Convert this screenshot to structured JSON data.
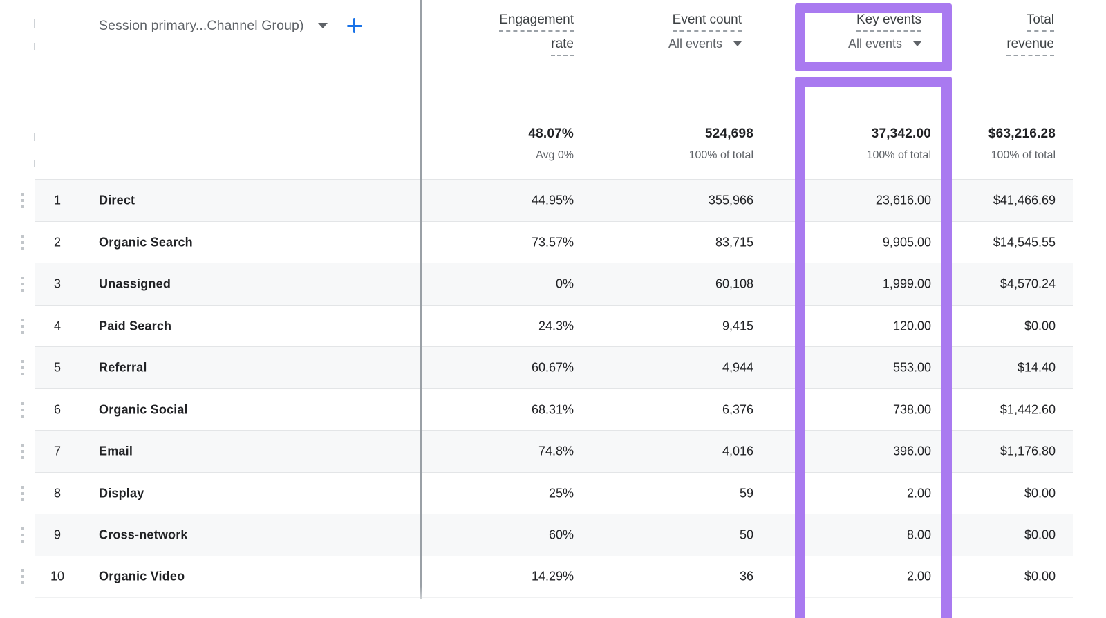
{
  "table": {
    "dimension_header": {
      "label": "Session primary...Channel Group)"
    },
    "columns": [
      {
        "id": "engagement_rate",
        "title_lines": [
          "Engagement",
          "rate"
        ],
        "subtitle": "",
        "summary_value": "48.07%",
        "summary_sub": "Avg 0%",
        "highlighted": false
      },
      {
        "id": "event_count",
        "title_lines": [
          "Event count"
        ],
        "subtitle": "All events",
        "summary_value": "524,698",
        "summary_sub": "100% of total",
        "highlighted": false
      },
      {
        "id": "key_events",
        "title_lines": [
          "Key events"
        ],
        "subtitle": "All events",
        "summary_value": "37,342.00",
        "summary_sub": "100% of total",
        "highlighted": true
      },
      {
        "id": "total_revenue",
        "title_lines": [
          "Total",
          "revenue"
        ],
        "subtitle": "",
        "summary_value": "$63,216.28",
        "summary_sub": "100% of total",
        "highlighted": false
      }
    ],
    "rows": [
      {
        "index": "1",
        "channel": "Direct",
        "engagement_rate": "44.95%",
        "event_count": "355,966",
        "key_events": "23,616.00",
        "total_revenue": "$41,466.69"
      },
      {
        "index": "2",
        "channel": "Organic Search",
        "engagement_rate": "73.57%",
        "event_count": "83,715",
        "key_events": "9,905.00",
        "total_revenue": "$14,545.55"
      },
      {
        "index": "3",
        "channel": "Unassigned",
        "engagement_rate": "0%",
        "event_count": "60,108",
        "key_events": "1,999.00",
        "total_revenue": "$4,570.24"
      },
      {
        "index": "4",
        "channel": "Paid Search",
        "engagement_rate": "24.3%",
        "event_count": "9,415",
        "key_events": "120.00",
        "total_revenue": "$0.00"
      },
      {
        "index": "5",
        "channel": "Referral",
        "engagement_rate": "60.67%",
        "event_count": "4,944",
        "key_events": "553.00",
        "total_revenue": "$14.40"
      },
      {
        "index": "6",
        "channel": "Organic Social",
        "engagement_rate": "68.31%",
        "event_count": "6,376",
        "key_events": "738.00",
        "total_revenue": "$1,442.60"
      },
      {
        "index": "7",
        "channel": "Email",
        "engagement_rate": "74.8%",
        "event_count": "4,016",
        "key_events": "396.00",
        "total_revenue": "$1,176.80"
      },
      {
        "index": "8",
        "channel": "Display",
        "engagement_rate": "25%",
        "event_count": "59",
        "key_events": "2.00",
        "total_revenue": "$0.00"
      },
      {
        "index": "9",
        "channel": "Cross-network",
        "engagement_rate": "60%",
        "event_count": "50",
        "key_events": "8.00",
        "total_revenue": "$0.00"
      },
      {
        "index": "10",
        "channel": "Organic Video",
        "engagement_rate": "14.29%",
        "event_count": "36",
        "key_events": "2.00",
        "total_revenue": "$0.00"
      }
    ]
  },
  "colors": {
    "highlight_purple": "#a97af0",
    "accent_blue": "#1a73e8",
    "divider_gray": "#9aa0a6",
    "row_stripe": "#f7f8f9"
  }
}
